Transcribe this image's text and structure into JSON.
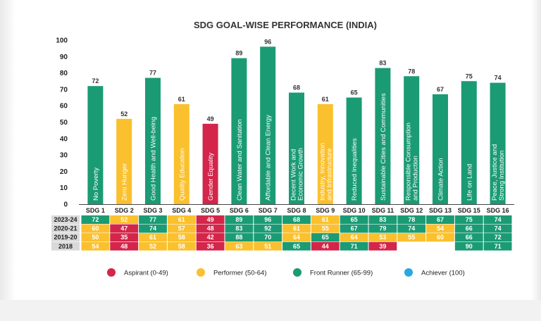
{
  "colors": {
    "aspirant": "#d4254a",
    "performer": "#fbc02d",
    "front_runner": "#1a9b74",
    "achiever": "#26a9e0",
    "table_label_bg": "#d9d9d9"
  },
  "chart_data": {
    "type": "bar",
    "title": "SDG GOAL-WISE PERFORMANCE (INDIA)",
    "xlabel": "",
    "ylabel": "",
    "ylim": [
      0,
      100
    ],
    "yticks": [
      0,
      10,
      20,
      30,
      40,
      50,
      60,
      70,
      80,
      90,
      100
    ],
    "grid": false,
    "legend_position": "bottom",
    "categories": [
      "SDG 1",
      "SDG 2",
      "SDG 3",
      "SDG 4",
      "SDG 5",
      "SDG 6",
      "SDG 7",
      "SDG 8",
      "SDG 9",
      "SDG 10",
      "SDG 11",
      "SDG 12",
      "SDG 13",
      "SDG 15",
      "SDG 16"
    ],
    "goal_labels": [
      [
        "No Poverty"
      ],
      [
        "Zero Hunger"
      ],
      [
        "Good Health and Well-being"
      ],
      [
        "Quality Education"
      ],
      [
        "Gender Equality"
      ],
      [
        "Clean Water and Sanitation"
      ],
      [
        "Affordable and Clean Energy"
      ],
      [
        "Decent Work and",
        "Economic Growth"
      ],
      [
        "Industry, Innovation",
        "and Infrastructure"
      ],
      [
        "Reduced Inequalities"
      ],
      [
        "Sustainable Cities and Communities"
      ],
      [
        "Responsible Consumption",
        "and Production"
      ],
      [
        "Climate Action"
      ],
      [
        "Life on Land"
      ],
      [
        "Peace, Justice and",
        "Strong Institution"
      ]
    ],
    "values": [
      72,
      52,
      77,
      61,
      49,
      89,
      96,
      68,
      61,
      65,
      83,
      78,
      67,
      75,
      74
    ],
    "table": {
      "rows": [
        {
          "year": "2023-24",
          "values": [
            72,
            52,
            77,
            61,
            49,
            89,
            96,
            68,
            61,
            65,
            83,
            78,
            67,
            75,
            74
          ]
        },
        {
          "year": "2020-21",
          "values": [
            60,
            47,
            74,
            57,
            48,
            83,
            92,
            61,
            55,
            67,
            79,
            74,
            54,
            66,
            74
          ]
        },
        {
          "year": "2019-20",
          "values": [
            50,
            35,
            61,
            58,
            42,
            88,
            70,
            64,
            65,
            64,
            53,
            55,
            60,
            66,
            72
          ]
        },
        {
          "year": "2018",
          "values": [
            54,
            48,
            52,
            58,
            36,
            63,
            51,
            65,
            44,
            71,
            39,
            null,
            null,
            90,
            71
          ]
        }
      ]
    },
    "legend": [
      {
        "label": "Aspirant (0-49)",
        "color": "#d4254a"
      },
      {
        "label": "Performer (50-64)",
        "color": "#fbc02d"
      },
      {
        "label": "Front Runner (65-99)",
        "color": "#1a9b74"
      },
      {
        "label": "Achiever (100)",
        "color": "#26a9e0"
      }
    ]
  }
}
